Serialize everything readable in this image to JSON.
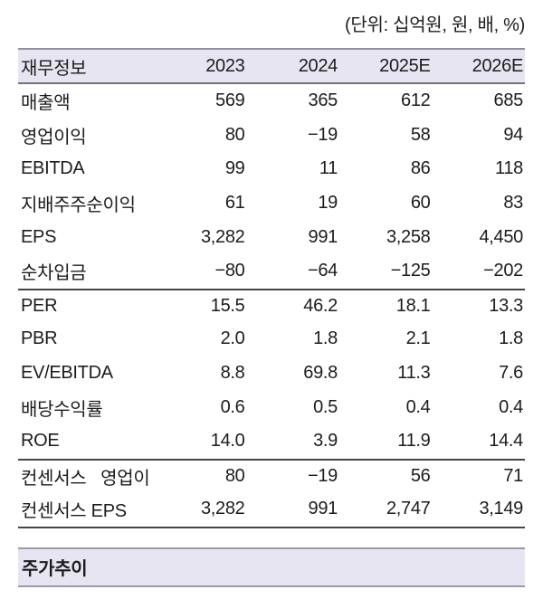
{
  "unit_note": "(단위: 십억원, 원, 배, %)",
  "table": {
    "headers": [
      "재무정보",
      "2023",
      "2024",
      "2025E",
      "2026E"
    ],
    "rows": [
      {
        "label": "매출액",
        "values": [
          "569",
          "365",
          "612",
          "685"
        ]
      },
      {
        "label": "영업이익",
        "values": [
          "80",
          "−19",
          "58",
          "94"
        ]
      },
      {
        "label": "EBITDA",
        "values": [
          "99",
          "11",
          "86",
          "118"
        ]
      },
      {
        "label": "지배주주순이익",
        "values": [
          "61",
          "19",
          "60",
          "83"
        ]
      },
      {
        "label": "EPS",
        "values": [
          "3,282",
          "991",
          "3,258",
          "4,450"
        ]
      },
      {
        "label": "순차입금",
        "values": [
          "−80",
          "−64",
          "−125",
          "−202"
        ]
      },
      {
        "label": "PER",
        "values": [
          "15.5",
          "46.2",
          "18.1",
          "13.3"
        ]
      },
      {
        "label": "PBR",
        "values": [
          "2.0",
          "1.8",
          "2.1",
          "1.8"
        ]
      },
      {
        "label": "EV/EBITDA",
        "values": [
          "8.8",
          "69.8",
          "11.3",
          "7.6"
        ]
      },
      {
        "label": "배당수익률",
        "values": [
          "0.6",
          "0.5",
          "0.4",
          "0.4"
        ]
      },
      {
        "label": "ROE",
        "values": [
          "14.0",
          "3.9",
          "11.9",
          "14.4"
        ]
      },
      {
        "label": "컨센서스   영업이",
        "values": [
          "80",
          "−19",
          "56",
          "71"
        ]
      },
      {
        "label": "컨센서스 EPS",
        "values": [
          "3,282",
          "991",
          "2,747",
          "3,149"
        ]
      }
    ]
  },
  "price_section": {
    "title": "주가추이"
  },
  "colors": {
    "header_bg": "#e7e5f1",
    "band_bg": "#e7e5f1",
    "light_rule": "#90909a",
    "medium_rule": "#73737d",
    "dark_rule": "#454545",
    "text": "#1c1c1c"
  }
}
